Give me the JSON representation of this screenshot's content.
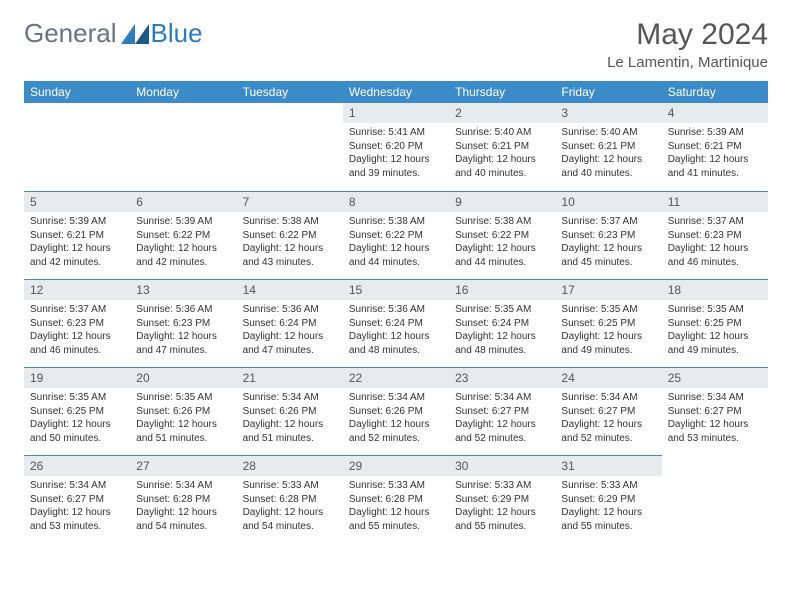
{
  "logo": {
    "part1": "General",
    "part2": "Blue"
  },
  "title": "May 2024",
  "subtitle": "Le Lamentin, Martinique",
  "header_bg": "#3b8bc9",
  "daynum_bg": "#e8ebee",
  "days": [
    "Sunday",
    "Monday",
    "Tuesday",
    "Wednesday",
    "Thursday",
    "Friday",
    "Saturday"
  ],
  "weeks": [
    [
      null,
      null,
      null,
      {
        "n": "1",
        "sr": "5:41 AM",
        "ss": "6:20 PM",
        "dl": "12 hours and 39 minutes."
      },
      {
        "n": "2",
        "sr": "5:40 AM",
        "ss": "6:21 PM",
        "dl": "12 hours and 40 minutes."
      },
      {
        "n": "3",
        "sr": "5:40 AM",
        "ss": "6:21 PM",
        "dl": "12 hours and 40 minutes."
      },
      {
        "n": "4",
        "sr": "5:39 AM",
        "ss": "6:21 PM",
        "dl": "12 hours and 41 minutes."
      }
    ],
    [
      {
        "n": "5",
        "sr": "5:39 AM",
        "ss": "6:21 PM",
        "dl": "12 hours and 42 minutes."
      },
      {
        "n": "6",
        "sr": "5:39 AM",
        "ss": "6:22 PM",
        "dl": "12 hours and 42 minutes."
      },
      {
        "n": "7",
        "sr": "5:38 AM",
        "ss": "6:22 PM",
        "dl": "12 hours and 43 minutes."
      },
      {
        "n": "8",
        "sr": "5:38 AM",
        "ss": "6:22 PM",
        "dl": "12 hours and 44 minutes."
      },
      {
        "n": "9",
        "sr": "5:38 AM",
        "ss": "6:22 PM",
        "dl": "12 hours and 44 minutes."
      },
      {
        "n": "10",
        "sr": "5:37 AM",
        "ss": "6:23 PM",
        "dl": "12 hours and 45 minutes."
      },
      {
        "n": "11",
        "sr": "5:37 AM",
        "ss": "6:23 PM",
        "dl": "12 hours and 46 minutes."
      }
    ],
    [
      {
        "n": "12",
        "sr": "5:37 AM",
        "ss": "6:23 PM",
        "dl": "12 hours and 46 minutes."
      },
      {
        "n": "13",
        "sr": "5:36 AM",
        "ss": "6:23 PM",
        "dl": "12 hours and 47 minutes."
      },
      {
        "n": "14",
        "sr": "5:36 AM",
        "ss": "6:24 PM",
        "dl": "12 hours and 47 minutes."
      },
      {
        "n": "15",
        "sr": "5:36 AM",
        "ss": "6:24 PM",
        "dl": "12 hours and 48 minutes."
      },
      {
        "n": "16",
        "sr": "5:35 AM",
        "ss": "6:24 PM",
        "dl": "12 hours and 48 minutes."
      },
      {
        "n": "17",
        "sr": "5:35 AM",
        "ss": "6:25 PM",
        "dl": "12 hours and 49 minutes."
      },
      {
        "n": "18",
        "sr": "5:35 AM",
        "ss": "6:25 PM",
        "dl": "12 hours and 49 minutes."
      }
    ],
    [
      {
        "n": "19",
        "sr": "5:35 AM",
        "ss": "6:25 PM",
        "dl": "12 hours and 50 minutes."
      },
      {
        "n": "20",
        "sr": "5:35 AM",
        "ss": "6:26 PM",
        "dl": "12 hours and 51 minutes."
      },
      {
        "n": "21",
        "sr": "5:34 AM",
        "ss": "6:26 PM",
        "dl": "12 hours and 51 minutes."
      },
      {
        "n": "22",
        "sr": "5:34 AM",
        "ss": "6:26 PM",
        "dl": "12 hours and 52 minutes."
      },
      {
        "n": "23",
        "sr": "5:34 AM",
        "ss": "6:27 PM",
        "dl": "12 hours and 52 minutes."
      },
      {
        "n": "24",
        "sr": "5:34 AM",
        "ss": "6:27 PM",
        "dl": "12 hours and 52 minutes."
      },
      {
        "n": "25",
        "sr": "5:34 AM",
        "ss": "6:27 PM",
        "dl": "12 hours and 53 minutes."
      }
    ],
    [
      {
        "n": "26",
        "sr": "5:34 AM",
        "ss": "6:27 PM",
        "dl": "12 hours and 53 minutes."
      },
      {
        "n": "27",
        "sr": "5:34 AM",
        "ss": "6:28 PM",
        "dl": "12 hours and 54 minutes."
      },
      {
        "n": "28",
        "sr": "5:33 AM",
        "ss": "6:28 PM",
        "dl": "12 hours and 54 minutes."
      },
      {
        "n": "29",
        "sr": "5:33 AM",
        "ss": "6:28 PM",
        "dl": "12 hours and 55 minutes."
      },
      {
        "n": "30",
        "sr": "5:33 AM",
        "ss": "6:29 PM",
        "dl": "12 hours and 55 minutes."
      },
      {
        "n": "31",
        "sr": "5:33 AM",
        "ss": "6:29 PM",
        "dl": "12 hours and 55 minutes."
      },
      null
    ]
  ],
  "labels": {
    "sunrise": "Sunrise:",
    "sunset": "Sunset:",
    "daylight": "Daylight:"
  }
}
